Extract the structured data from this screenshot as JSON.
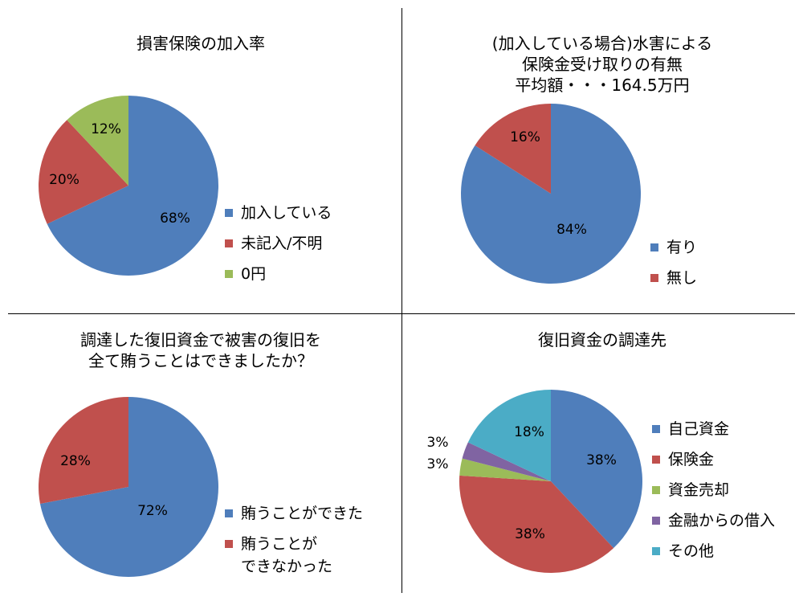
{
  "chart_data": [
    {
      "type": "pie",
      "title_lines": [
        "損害保険の加入率"
      ],
      "categories": [
        "加入している",
        "未記入/不明",
        "0円"
      ],
      "values": [
        68,
        20,
        12
      ],
      "labels": [
        "68%",
        "20%",
        "12%"
      ],
      "colors": [
        "#4F7EBB",
        "#C0504D",
        "#9BBB59"
      ],
      "legend": "right"
    },
    {
      "type": "pie",
      "title_lines": [
        "(加入している場合)水害による",
        "保険金受け取りの有無",
        "平均額・・・164.5万円"
      ],
      "categories": [
        "有り",
        "無し"
      ],
      "values": [
        84,
        16
      ],
      "labels": [
        "84%",
        "16%"
      ],
      "colors": [
        "#4F7EBB",
        "#C0504D"
      ],
      "legend": "right"
    },
    {
      "type": "pie",
      "title_lines": [
        "調達した復旧資金で被害の復旧を",
        "全て賄うことはできましたか？"
      ],
      "categories": [
        "賄うことができた",
        "賄うことが\nできなかった"
      ],
      "legend_lines": [
        [
          "賄うことができた"
        ],
        [
          "賄うことが",
          "できなかった"
        ]
      ],
      "values": [
        72,
        28
      ],
      "labels": [
        "72%",
        "28%"
      ],
      "colors": [
        "#4F7EBB",
        "#C0504D"
      ],
      "legend": "right"
    },
    {
      "type": "pie",
      "title_lines": [
        "復旧資金の調達先"
      ],
      "categories": [
        "自己資金",
        "保険金",
        "資金売却",
        "金融からの借入",
        "その他"
      ],
      "values": [
        38,
        38,
        3,
        3,
        18
      ],
      "labels": [
        "38%",
        "38%",
        "3%",
        "3%",
        "18%"
      ],
      "colors": [
        "#4F7EBB",
        "#C0504D",
        "#9BBB59",
        "#8064A2",
        "#4BACC6"
      ],
      "legend": "right"
    }
  ]
}
